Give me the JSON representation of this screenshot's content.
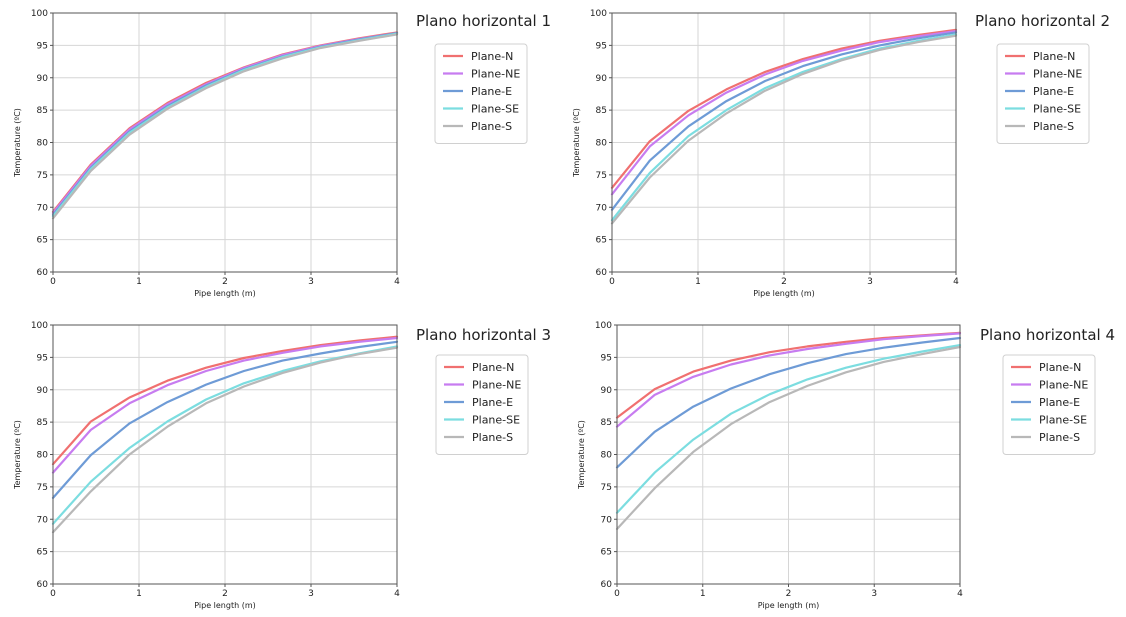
{
  "chart_data": [
    {
      "type": "line",
      "title": "Plano horizontal 1",
      "xlabel": "Pipe length (m)",
      "ylabel": "Temperature (ºC)",
      "xlim": [
        0,
        4
      ],
      "ylim": [
        60,
        100
      ],
      "xticks": [
        0,
        1,
        2,
        3,
        4
      ],
      "yticks": [
        60,
        65,
        70,
        75,
        80,
        85,
        90,
        95,
        100
      ],
      "grid": true,
      "legend_position": "right",
      "x": [
        0,
        0.44,
        0.89,
        1.33,
        1.78,
        2.22,
        2.67,
        3.11,
        3.56,
        4.0
      ],
      "series": [
        {
          "name": "Plane-N",
          "color": "#f07070",
          "values": [
            69.3,
            76.6,
            82.2,
            86.1,
            89.2,
            91.6,
            93.6,
            95.0,
            96.1,
            97.0
          ]
        },
        {
          "name": "Plane-NE",
          "color": "#c77cf0",
          "values": [
            69.1,
            76.4,
            82.0,
            85.9,
            89.0,
            91.5,
            93.5,
            94.9,
            96.0,
            96.9
          ]
        },
        {
          "name": "Plane-E",
          "color": "#6e9bd6",
          "values": [
            68.8,
            76.1,
            81.7,
            85.6,
            88.8,
            91.3,
            93.3,
            94.8,
            95.9,
            96.9
          ]
        },
        {
          "name": "Plane-SE",
          "color": "#7cdde0",
          "values": [
            68.6,
            75.9,
            81.5,
            85.4,
            88.6,
            91.2,
            93.2,
            94.7,
            95.8,
            96.8
          ]
        },
        {
          "name": "Plane-S",
          "color": "#b8b8b8",
          "values": [
            68.3,
            75.6,
            81.2,
            85.2,
            88.4,
            91.0,
            93.0,
            94.6,
            95.7,
            96.7
          ]
        }
      ]
    },
    {
      "type": "line",
      "title": "Plano horizontal 2",
      "xlabel": "Pipe length (m)",
      "ylabel": "Temperature (ºC)",
      "xlim": [
        0,
        4
      ],
      "ylim": [
        60,
        100
      ],
      "xticks": [
        0,
        1,
        2,
        3,
        4
      ],
      "yticks": [
        60,
        65,
        70,
        75,
        80,
        85,
        90,
        95,
        100
      ],
      "grid": true,
      "legend_position": "right",
      "x": [
        0,
        0.44,
        0.89,
        1.33,
        1.78,
        2.22,
        2.67,
        3.11,
        3.56,
        4.0
      ],
      "series": [
        {
          "name": "Plane-N",
          "color": "#f07070",
          "values": [
            73.0,
            80.2,
            84.9,
            88.2,
            90.9,
            92.9,
            94.5,
            95.7,
            96.6,
            97.4
          ]
        },
        {
          "name": "Plane-NE",
          "color": "#c77cf0",
          "values": [
            72.0,
            79.4,
            84.2,
            87.7,
            90.5,
            92.6,
            94.2,
            95.5,
            96.4,
            97.2
          ]
        },
        {
          "name": "Plane-E",
          "color": "#6e9bd6",
          "values": [
            69.6,
            77.2,
            82.5,
            86.4,
            89.5,
            91.8,
            93.6,
            95.0,
            96.1,
            97.0
          ]
        },
        {
          "name": "Plane-SE",
          "color": "#7cdde0",
          "values": [
            68.0,
            75.3,
            81.0,
            85.0,
            88.4,
            90.9,
            92.9,
            94.5,
            95.7,
            96.7
          ]
        },
        {
          "name": "Plane-S",
          "color": "#b8b8b8",
          "values": [
            67.5,
            74.6,
            80.3,
            84.5,
            88.0,
            90.6,
            92.7,
            94.3,
            95.5,
            96.5
          ]
        }
      ]
    },
    {
      "type": "line",
      "title": "Plano horizontal 3",
      "xlabel": "Pipe length (m)",
      "ylabel": "Temperature (ºC)",
      "xlim": [
        0,
        4
      ],
      "ylim": [
        60,
        100
      ],
      "xticks": [
        0,
        1,
        2,
        3,
        4
      ],
      "yticks": [
        60,
        65,
        70,
        75,
        80,
        85,
        90,
        95,
        100
      ],
      "grid": true,
      "legend_position": "right",
      "x": [
        0,
        0.44,
        0.89,
        1.33,
        1.78,
        2.22,
        2.67,
        3.11,
        3.56,
        4.0
      ],
      "series": [
        {
          "name": "Plane-N",
          "color": "#f07070",
          "values": [
            78.5,
            85.1,
            88.8,
            91.4,
            93.4,
            94.9,
            96.0,
            96.9,
            97.6,
            98.2
          ]
        },
        {
          "name": "Plane-NE",
          "color": "#c77cf0",
          "values": [
            77.2,
            83.8,
            87.9,
            90.7,
            92.9,
            94.5,
            95.7,
            96.7,
            97.4,
            98.0
          ]
        },
        {
          "name": "Plane-E",
          "color": "#6e9bd6",
          "values": [
            73.3,
            79.9,
            84.8,
            88.1,
            90.8,
            92.9,
            94.5,
            95.6,
            96.6,
            97.4
          ]
        },
        {
          "name": "Plane-SE",
          "color": "#7cdde0",
          "values": [
            69.3,
            75.8,
            81.0,
            85.1,
            88.5,
            91.0,
            92.9,
            94.4,
            95.6,
            96.7
          ]
        },
        {
          "name": "Plane-S",
          "color": "#b8b8b8",
          "values": [
            68.0,
            74.3,
            80.0,
            84.3,
            87.9,
            90.5,
            92.6,
            94.2,
            95.5,
            96.5
          ]
        }
      ]
    },
    {
      "type": "line",
      "title": "Plano horizontal 4",
      "xlabel": "Pipe length (m)",
      "ylabel": "Temperature (ºC)",
      "xlim": [
        0,
        4
      ],
      "ylim": [
        60,
        100
      ],
      "xticks": [
        0,
        1,
        2,
        3,
        4
      ],
      "yticks": [
        60,
        65,
        70,
        75,
        80,
        85,
        90,
        95,
        100
      ],
      "grid": true,
      "legend_position": "right",
      "x": [
        0,
        0.44,
        0.89,
        1.33,
        1.78,
        2.22,
        2.67,
        3.11,
        3.56,
        4.0
      ],
      "series": [
        {
          "name": "Plane-N",
          "color": "#f07070",
          "values": [
            85.7,
            90.1,
            92.8,
            94.5,
            95.8,
            96.7,
            97.4,
            98.0,
            98.4,
            98.8
          ]
        },
        {
          "name": "Plane-NE",
          "color": "#c77cf0",
          "values": [
            84.3,
            89.2,
            92.0,
            93.9,
            95.3,
            96.3,
            97.1,
            97.8,
            98.3,
            98.7
          ]
        },
        {
          "name": "Plane-E",
          "color": "#6e9bd6",
          "values": [
            78.0,
            83.5,
            87.4,
            90.2,
            92.4,
            94.1,
            95.5,
            96.5,
            97.3,
            98.0
          ]
        },
        {
          "name": "Plane-SE",
          "color": "#7cdde0",
          "values": [
            71.0,
            77.2,
            82.3,
            86.3,
            89.3,
            91.6,
            93.4,
            94.8,
            95.9,
            96.9
          ]
        },
        {
          "name": "Plane-S",
          "color": "#b8b8b8",
          "values": [
            68.5,
            74.8,
            80.4,
            84.7,
            88.1,
            90.6,
            92.7,
            94.3,
            95.5,
            96.6
          ]
        }
      ]
    }
  ]
}
